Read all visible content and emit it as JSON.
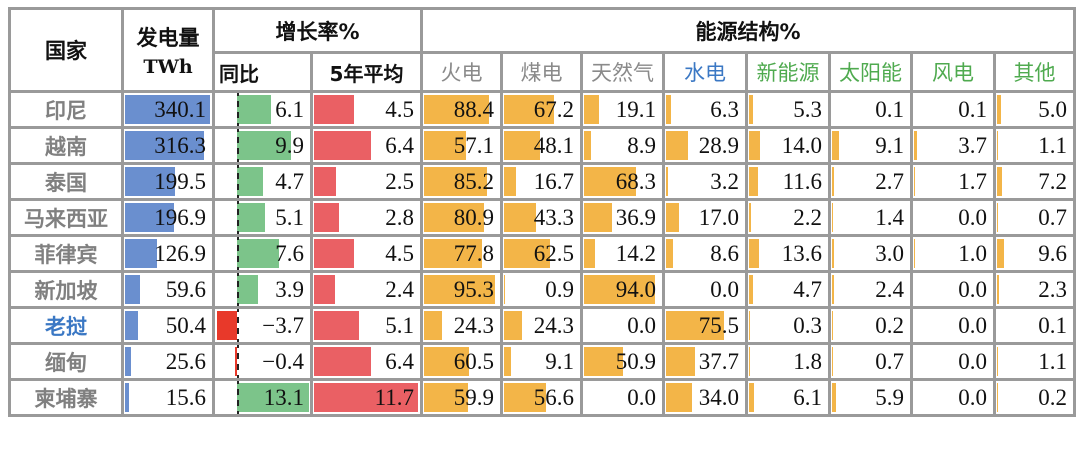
{
  "headers": {
    "country": "国家",
    "generation": "发电量",
    "generation_unit": "TWh",
    "growth_group": "增长率%",
    "yoy": "同比",
    "avg5": "5年平均",
    "structure_group": "能源结构%",
    "structure": [
      {
        "label": "火电",
        "color": "#8a8a8a"
      },
      {
        "label": "煤电",
        "color": "#8a8a8a"
      },
      {
        "label": "天然气",
        "color": "#8a8a8a"
      },
      {
        "label": "水电",
        "color": "#3b78c4"
      },
      {
        "label": "新能源",
        "color": "#4faa4f"
      },
      {
        "label": "太阳能",
        "color": "#4faa4f"
      },
      {
        "label": "风电",
        "color": "#4faa4f"
      },
      {
        "label": "其他",
        "color": "#4faa4f"
      }
    ]
  },
  "colors": {
    "generation_bar": "#6a8fcf",
    "yoy_positive_bar": "#7cc48a",
    "yoy_negative_bar": "#e8392a",
    "avg5_bar": "#ea6064",
    "structure_bar": "#f3b548",
    "country_text": "#808080",
    "highlight_country_text": "#3b78c4"
  },
  "chart_data": {
    "type": "table",
    "columns": [
      "国家",
      "发电量 TWh",
      "同比",
      "5年平均",
      "火电",
      "煤电",
      "天然气",
      "水电",
      "新能源",
      "太阳能",
      "风电",
      "其他"
    ],
    "rows": [
      {
        "country": "印尼",
        "generation": 340.1,
        "yoy": 6.1,
        "avg5": 4.5,
        "structure": [
          88.4,
          67.2,
          19.1,
          6.3,
          5.3,
          0.1,
          0.1,
          5.0
        ]
      },
      {
        "country": "越南",
        "generation": 316.3,
        "yoy": 9.9,
        "avg5": 6.4,
        "structure": [
          57.1,
          48.1,
          8.9,
          28.9,
          14.0,
          9.1,
          3.7,
          1.1
        ]
      },
      {
        "country": "泰国",
        "generation": 199.5,
        "yoy": 4.7,
        "avg5": 2.5,
        "structure": [
          85.2,
          16.7,
          68.3,
          3.2,
          11.6,
          2.7,
          1.7,
          7.2
        ]
      },
      {
        "country": "马来西亚",
        "generation": 196.9,
        "yoy": 5.1,
        "avg5": 2.8,
        "structure": [
          80.9,
          43.3,
          36.9,
          17.0,
          2.2,
          1.4,
          0.0,
          0.7
        ]
      },
      {
        "country": "菲律宾",
        "generation": 126.9,
        "yoy": 7.6,
        "avg5": 4.5,
        "structure": [
          77.8,
          62.5,
          14.2,
          8.6,
          13.6,
          3.0,
          1.0,
          9.6
        ]
      },
      {
        "country": "新加坡",
        "generation": 59.6,
        "yoy": 3.9,
        "avg5": 2.4,
        "structure": [
          95.3,
          0.9,
          94.0,
          0.0,
          4.7,
          2.4,
          0.0,
          2.3
        ]
      },
      {
        "country": "老挝",
        "highlight": true,
        "generation": 50.4,
        "yoy": -3.7,
        "avg5": 5.1,
        "structure": [
          24.3,
          24.3,
          0.0,
          75.5,
          0.3,
          0.2,
          0.0,
          0.1
        ]
      },
      {
        "country": "缅甸",
        "generation": 25.6,
        "yoy": -0.4,
        "avg5": 6.4,
        "structure": [
          60.5,
          9.1,
          50.9,
          37.7,
          1.8,
          0.7,
          0.0,
          1.1
        ]
      },
      {
        "country": "柬埔寨",
        "generation": 15.6,
        "yoy": 13.1,
        "avg5": 11.7,
        "structure": [
          59.9,
          56.6,
          0.0,
          34.0,
          6.1,
          5.9,
          0.0,
          0.2
        ]
      }
    ]
  }
}
